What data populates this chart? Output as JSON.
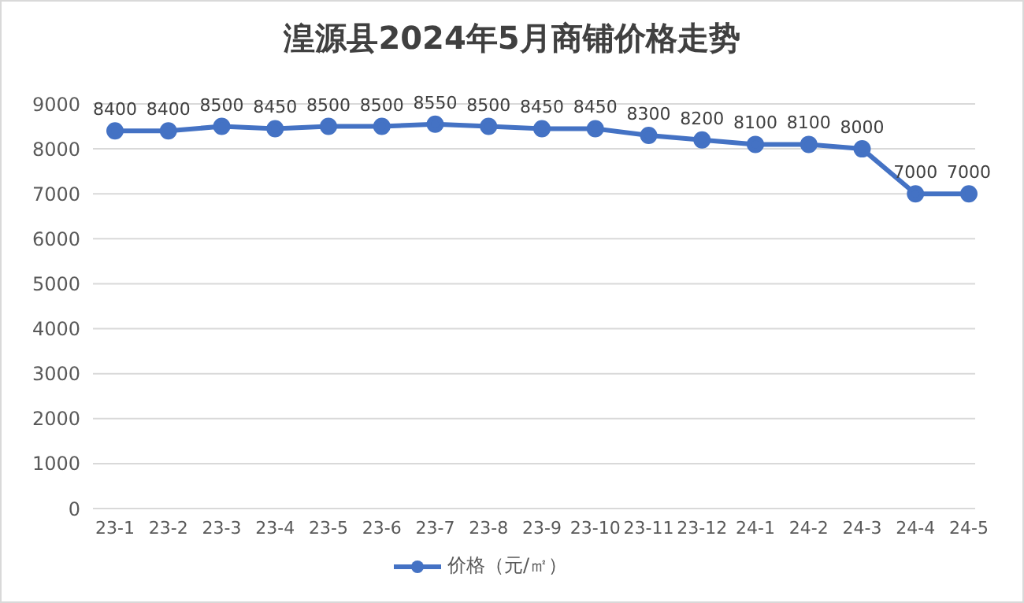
{
  "chart_data": {
    "type": "line",
    "title": "湟源县2024年5月商铺价格走势",
    "categories": [
      "23-1",
      "23-2",
      "23-3",
      "23-4",
      "23-5",
      "23-6",
      "23-7",
      "23-8",
      "23-9",
      "23-10",
      "23-11",
      "23-12",
      "24-1",
      "24-2",
      "24-3",
      "24-4",
      "24-5"
    ],
    "series": [
      {
        "name": "价格（元/㎡）",
        "color": "#4472c4",
        "values": [
          8400,
          8400,
          8500,
          8450,
          8500,
          8500,
          8550,
          8500,
          8450,
          8450,
          8300,
          8200,
          8100,
          8100,
          8000,
          7000,
          7000
        ]
      }
    ],
    "ylim": [
      0,
      9000
    ],
    "yticks": [
      0,
      1000,
      2000,
      3000,
      4000,
      5000,
      6000,
      7000,
      8000,
      9000
    ],
    "grid": "y",
    "legend": "bottom",
    "marker": "circle",
    "line_style": "solid",
    "data_labels": true
  }
}
